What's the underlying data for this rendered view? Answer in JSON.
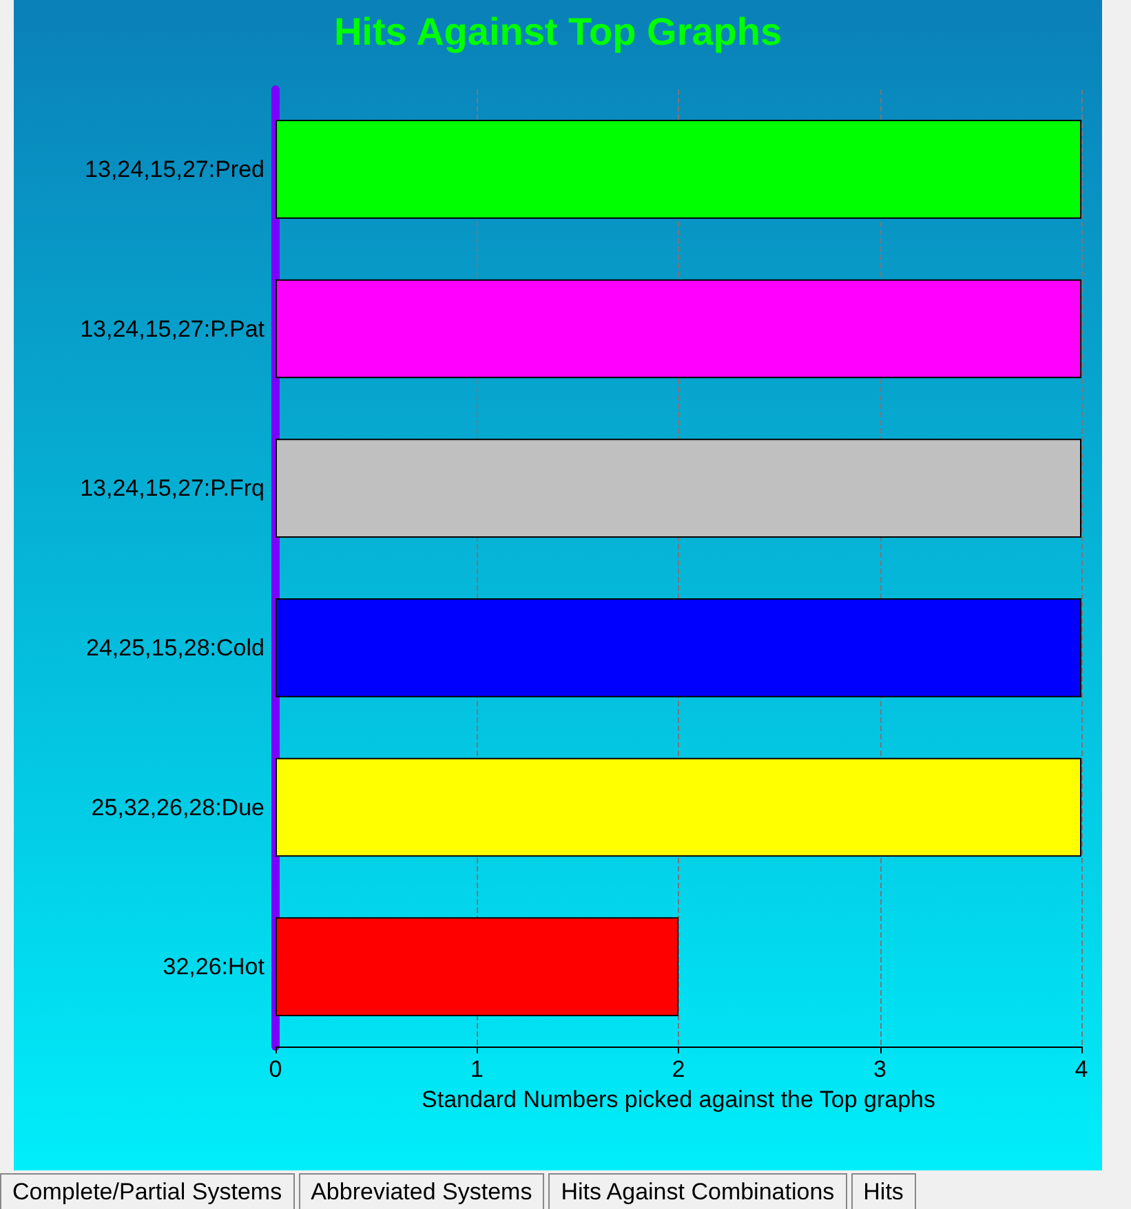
{
  "chart_data": {
    "type": "bar",
    "orientation": "horizontal",
    "title": "Hits Against Top Graphs",
    "xlabel": "Standard Numbers picked against the Top graphs",
    "categories": [
      "13,24,15,27:Pred",
      "13,24,15,27:P.Pat",
      "13,24,15,27:P.Frq",
      "24,25,15,28:Cold",
      "25,32,26,28:Due",
      "32,26:Hot"
    ],
    "values": [
      4,
      4,
      4,
      4,
      4,
      2
    ],
    "colors": [
      "#00ff00",
      "#ff00ff",
      "#c0c0c0",
      "#0000ff",
      "#ffff00",
      "#ff0000"
    ],
    "xlim": [
      0,
      4
    ],
    "xticks": [
      0,
      1,
      2,
      3,
      4
    ],
    "grid": "x",
    "annotations": [
      "Complete/Partial Systems",
      "Abbreviated Systems",
      "Hits Against Combinations",
      "Hits"
    ]
  }
}
